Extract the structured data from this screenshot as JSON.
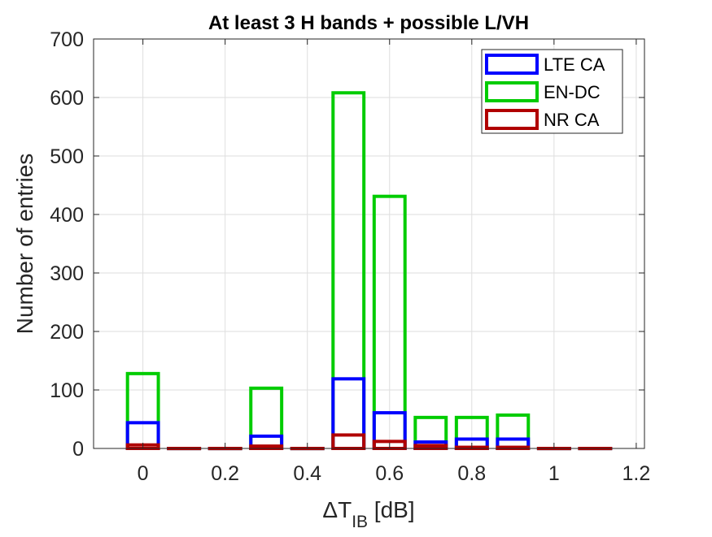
{
  "chart_data": {
    "type": "bar",
    "title": "At least 3 H bands + possible L/VH",
    "xlabel": {
      "main": "ΔT",
      "sub": "IB",
      "unit": " [dB]"
    },
    "ylabel": "Number of entries",
    "xlim": [
      -0.12,
      1.22
    ],
    "ylim": [
      0,
      700
    ],
    "xticks": [
      0,
      0.2,
      0.4,
      0.6,
      0.8,
      1,
      1.2
    ],
    "xtick_labels": [
      "0",
      "0.2",
      "0.4",
      "0.6",
      "0.8",
      "1",
      "1.2"
    ],
    "yticks": [
      0,
      100,
      200,
      300,
      400,
      500,
      600,
      700
    ],
    "ytick_labels": [
      "0",
      "100",
      "200",
      "300",
      "400",
      "500",
      "600",
      "700"
    ],
    "grid": true,
    "legend_position": "top-right",
    "bin_width": 0.075,
    "x": [
      0,
      0.1,
      0.2,
      0.3,
      0.4,
      0.5,
      0.6,
      0.7,
      0.8,
      0.9,
      1.0,
      1.1
    ],
    "series": [
      {
        "name": "LTE CA",
        "color": "#0000ff",
        "values": [
          44,
          0,
          0,
          21,
          0,
          119,
          61,
          11,
          16,
          16,
          0,
          0
        ]
      },
      {
        "name": "EN-DC",
        "color": "#00cc00",
        "values": [
          128,
          0,
          0,
          103,
          0,
          608,
          431,
          53,
          53,
          57,
          0,
          0
        ]
      },
      {
        "name": "NR CA",
        "color": "#b00000",
        "values": [
          6,
          0,
          0,
          4,
          0,
          23,
          12,
          5,
          2,
          2,
          0,
          0
        ]
      }
    ]
  }
}
